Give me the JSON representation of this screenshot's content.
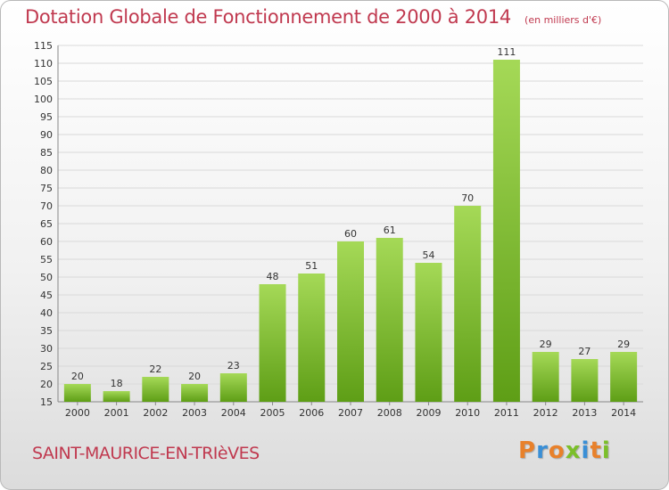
{
  "header": {
    "title": "Dotation Globale de Fonctionnement de 2000 à 2014",
    "unit": "(en milliers d'€)"
  },
  "footer": {
    "commune": "SAINT-MAURICE-EN-TRIèVES",
    "brand": "Proxiti"
  },
  "colors": {
    "title": "#c0394f",
    "bar_light": "#a5d957",
    "bar_dark": "#5e9e16",
    "brand_letters": [
      "#e8812b",
      "#3a8fd6",
      "#e8812b",
      "#7bbf2a",
      "#3a8fd6",
      "#e8812b",
      "#7bbf2a"
    ]
  },
  "chart_data": {
    "type": "bar",
    "title": "Dotation Globale de Fonctionnement de 2000 à 2014",
    "subtitle": "(en milliers d'€)",
    "xlabel": "",
    "ylabel": "",
    "categories": [
      "2000",
      "2001",
      "2002",
      "2003",
      "2004",
      "2005",
      "2006",
      "2007",
      "2008",
      "2009",
      "2010",
      "2011",
      "2012",
      "2013",
      "2014"
    ],
    "values": [
      20,
      18,
      22,
      20,
      23,
      48,
      51,
      60,
      61,
      54,
      70,
      111,
      29,
      27,
      29
    ],
    "ylim": [
      15,
      115
    ],
    "yticks": [
      15,
      20,
      25,
      30,
      35,
      40,
      45,
      50,
      55,
      60,
      65,
      70,
      75,
      80,
      85,
      90,
      95,
      100,
      105,
      110,
      115
    ],
    "grid": true,
    "legend": "none"
  }
}
